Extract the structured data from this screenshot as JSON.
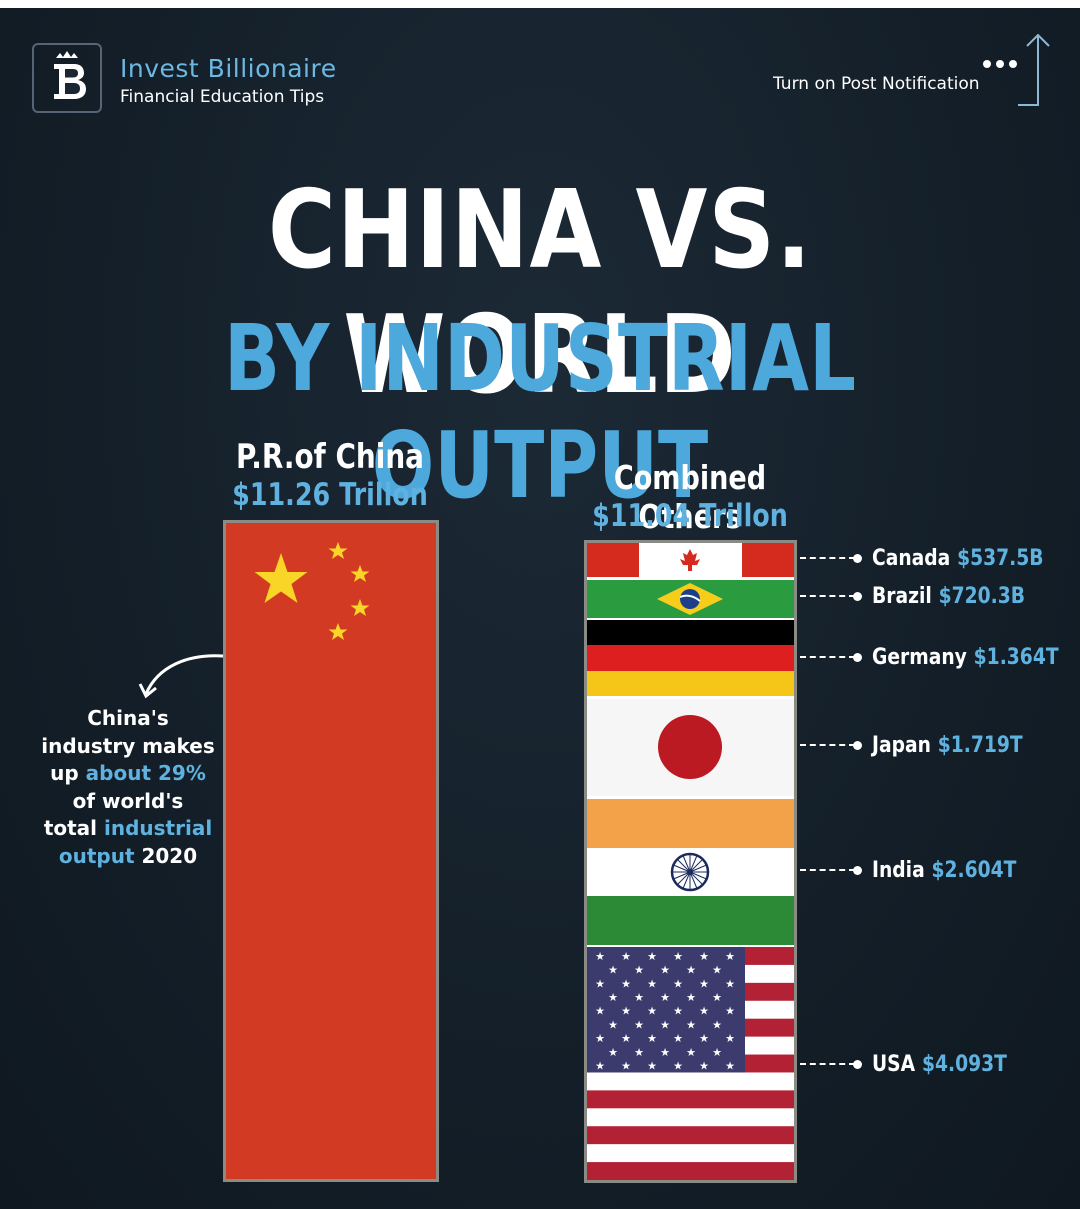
{
  "brand": {
    "name": "Invest Billionaire",
    "tagline": "Financial Education Tips",
    "notification": "Turn on Post Notification"
  },
  "title": {
    "line1": "CHINA VS. WORLD",
    "line2": "BY INDUSTRIAL OUTPUT"
  },
  "china": {
    "label": "P.R.of China",
    "value": "$11.26 Trillon"
  },
  "others": {
    "label": "Combined Others",
    "value": "$11.04 Trillon"
  },
  "note": {
    "line1": "China's",
    "line2": "industry makes",
    "line3a": "up ",
    "line3b": "about 29%",
    "line4": "of world's",
    "line5a": "total ",
    "line5b": "industrial",
    "line6a": "output",
    "line6b": " 2020"
  },
  "chart_data": {
    "type": "bar",
    "title": "CHINA VS. WORLD BY INDUSTRIAL OUTPUT",
    "categories": [
      "P.R.of China",
      "Combined Others"
    ],
    "values_trillion_usd": [
      11.26,
      11.04
    ],
    "series": [
      {
        "name": "Canada",
        "value_billion_usd": 537.5,
        "label": "$537.5B"
      },
      {
        "name": "Brazil",
        "value_billion_usd": 720.3,
        "label": "$720.3B"
      },
      {
        "name": "Germany",
        "value_billion_usd": 1364,
        "label": "$1.364T"
      },
      {
        "name": "Japan",
        "value_billion_usd": 1719,
        "label": "$1.719T"
      },
      {
        "name": "India",
        "value_billion_usd": 2604,
        "label": "$2.604T"
      },
      {
        "name": "USA",
        "value_billion_usd": 4093,
        "label": "$4.093T"
      }
    ],
    "colors": {
      "china": "#d23a24",
      "accent": "#5fb2e0"
    }
  }
}
